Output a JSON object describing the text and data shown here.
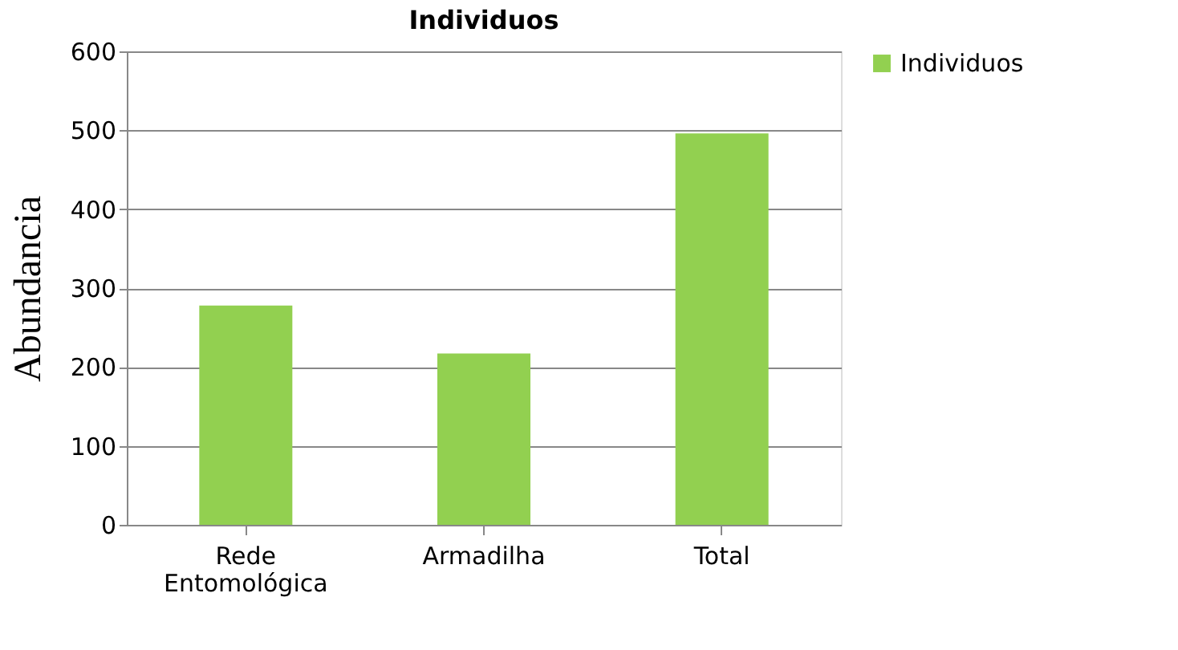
{
  "chart_data": {
    "type": "bar",
    "title": "Individuos",
    "ylabel": "Abundancia",
    "categories": [
      "Rede Entomológica",
      "Armadilha",
      "Total"
    ],
    "series": [
      {
        "name": "Individuos",
        "color": "#92d050",
        "values": [
          278,
          217,
          496
        ]
      }
    ],
    "ylim": [
      0,
      600
    ],
    "yticks": [
      0,
      100,
      200,
      300,
      400,
      500,
      600
    ],
    "grid": "y",
    "legend": "right"
  }
}
